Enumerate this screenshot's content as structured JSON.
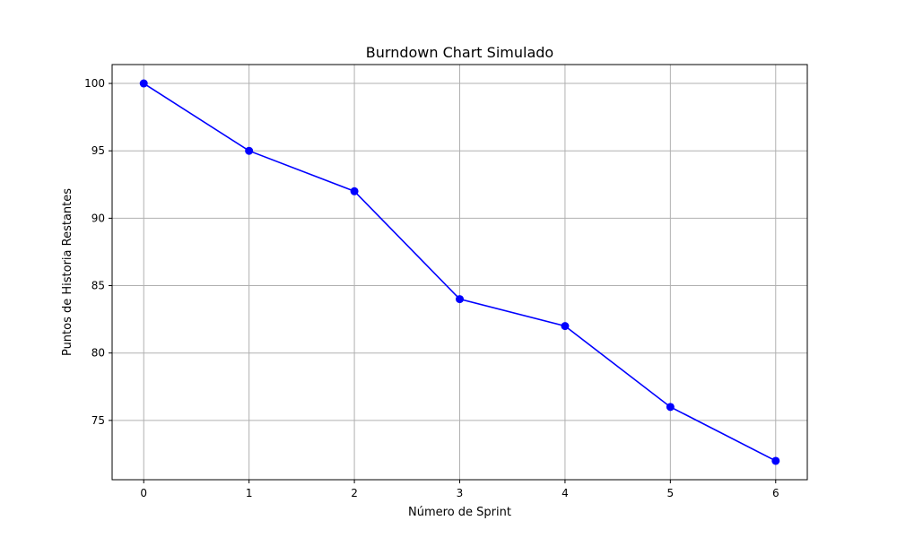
{
  "chart_data": {
    "type": "line",
    "title": "Burndown Chart Simulado",
    "xlabel": "Número de Sprint",
    "ylabel": "Puntos de Historia Restantes",
    "x": [
      0,
      1,
      2,
      3,
      4,
      5,
      6
    ],
    "series": [
      {
        "values": [
          100,
          95,
          92,
          84,
          82,
          76,
          72
        ],
        "color": "#0000ff",
        "marker": "circle"
      }
    ],
    "xlim": [
      -0.3,
      6.3
    ],
    "ylim": [
      70.6,
      101.4
    ],
    "xticks": [
      0,
      1,
      2,
      3,
      4,
      5,
      6
    ],
    "yticks": [
      75,
      80,
      85,
      90,
      95,
      100
    ],
    "grid": true
  }
}
